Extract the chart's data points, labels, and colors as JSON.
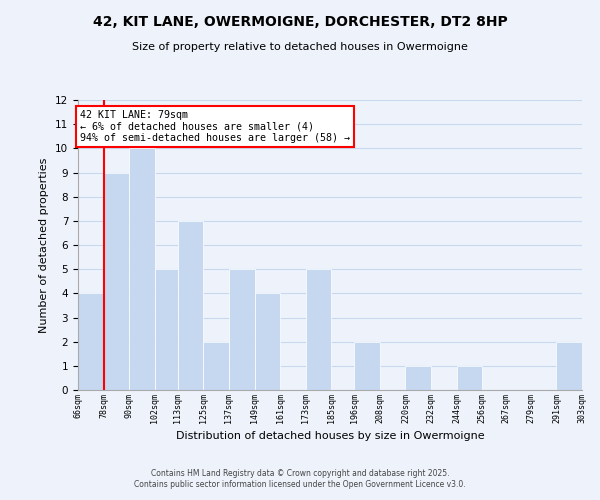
{
  "title": "42, KIT LANE, OWERMOIGNE, DORCHESTER, DT2 8HP",
  "subtitle": "Size of property relative to detached houses in Owermoigne",
  "xlabel": "Distribution of detached houses by size in Owermoigne",
  "ylabel": "Number of detached properties",
  "bar_color": "#c5d8f0",
  "bar_edge_color": "white",
  "grid_color": "#c8d8ee",
  "background_color": "#eef3fb",
  "bin_edges": [
    66,
    78,
    90,
    102,
    113,
    125,
    137,
    149,
    161,
    173,
    185,
    196,
    208,
    220,
    232,
    244,
    256,
    267,
    279,
    291,
    303
  ],
  "bar_heights": [
    4,
    9,
    10,
    5,
    7,
    2,
    5,
    4,
    0,
    5,
    0,
    2,
    0,
    1,
    0,
    1,
    0,
    0,
    0,
    2
  ],
  "tick_labels": [
    "66sqm",
    "78sqm",
    "90sqm",
    "102sqm",
    "113sqm",
    "125sqm",
    "137sqm",
    "149sqm",
    "161sqm",
    "173sqm",
    "185sqm",
    "196sqm",
    "208sqm",
    "220sqm",
    "232sqm",
    "244sqm",
    "256sqm",
    "267sqm",
    "279sqm",
    "291sqm",
    "303sqm"
  ],
  "red_line_x": 78,
  "annotation_title": "42 KIT LANE: 79sqm",
  "annotation_line1": "← 6% of detached houses are smaller (4)",
  "annotation_line2": "94% of semi-detached houses are larger (58) →",
  "ylim": [
    0,
    12
  ],
  "yticks": [
    0,
    1,
    2,
    3,
    4,
    5,
    6,
    7,
    8,
    9,
    10,
    11,
    12
  ],
  "footer1": "Contains HM Land Registry data © Crown copyright and database right 2025.",
  "footer2": "Contains public sector information licensed under the Open Government Licence v3.0."
}
